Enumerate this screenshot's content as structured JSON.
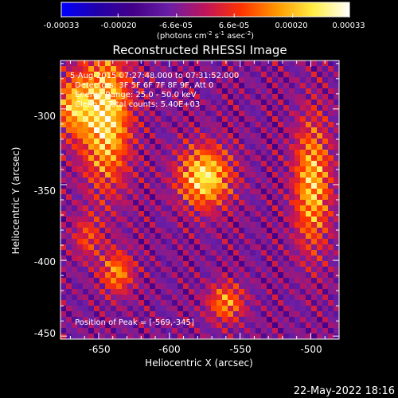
{
  "chart_data": {
    "type": "heatmap",
    "title": "Reconstructed RHESSI Image",
    "xlabel": "Heliocentric X (arcsec)",
    "ylabel": "Heliocentric Y (arcsec)",
    "xlim": [
      -677,
      -480
    ],
    "ylim": [
      -452,
      -268
    ],
    "xticks": [
      -650,
      -600,
      -550,
      -500
    ],
    "xtick_labels": [
      "-650",
      "-600",
      "-550",
      "-500"
    ],
    "yticks": [
      -300,
      -350,
      -400,
      -450
    ],
    "ytick_labels": [
      "-300",
      "-350",
      "-400",
      "-450"
    ],
    "colorbar": {
      "range": [
        -0.00033,
        0.00033
      ],
      "ticks": [
        -0.00033,
        -0.0002,
        -6.6e-05,
        6.6e-05,
        0.0002,
        0.00033
      ],
      "tick_labels": [
        "-0.00033",
        "-0.00020",
        "-6.6e-05",
        "6.6e-05",
        "0.00020",
        "0.00033"
      ],
      "unit_line1": "(photons cm",
      "unit_sup1": "-2",
      "unit_line2": " s",
      "unit_sup2": "-1",
      "unit_line3": " asec",
      "unit_sup3": "-2",
      "unit_close": ")",
      "colormap": [
        "#0000ff",
        "#2200aa",
        "#440088",
        "#6a1ea6",
        "#c0145a",
        "#ff3300",
        "#ff9900",
        "#ffee44",
        "#ffffff"
      ]
    },
    "sources": [
      {
        "x": -645,
        "y": -305,
        "sx": 12,
        "sy": 32,
        "amp": 0.00033
      },
      {
        "x": -668,
        "y": -298,
        "sx": 9,
        "sy": 14,
        "amp": 0.00024
      },
      {
        "x": -575,
        "y": -345,
        "sx": 13,
        "sy": 14,
        "amp": 0.00033
      },
      {
        "x": -499,
        "y": -350,
        "sx": 9,
        "sy": 30,
        "amp": 0.00028
      },
      {
        "x": -637,
        "y": -408,
        "sx": 8,
        "sy": 10,
        "amp": 0.00022
      },
      {
        "x": -658,
        "y": -385,
        "sx": 7,
        "sy": 10,
        "amp": 0.00014
      },
      {
        "x": -560,
        "y": -428,
        "sx": 9,
        "sy": 9,
        "amp": 0.00022
      }
    ],
    "background_level": -7e-05,
    "annotations": {
      "time": "5-Aug-2015 07:27:48.000 to 07:31:52.000",
      "detectors": "Detectors: 3F 5F 6F 7F 8F 9F, Att 0",
      "energy": "Energy Range: 25.0 - 50.0 keV",
      "clean": "Clean    Total counts: 5.40E+03",
      "peak": "Position of Peak = [-569,-345]"
    }
  },
  "footer_timestamp": "22-May-2022 18:16"
}
